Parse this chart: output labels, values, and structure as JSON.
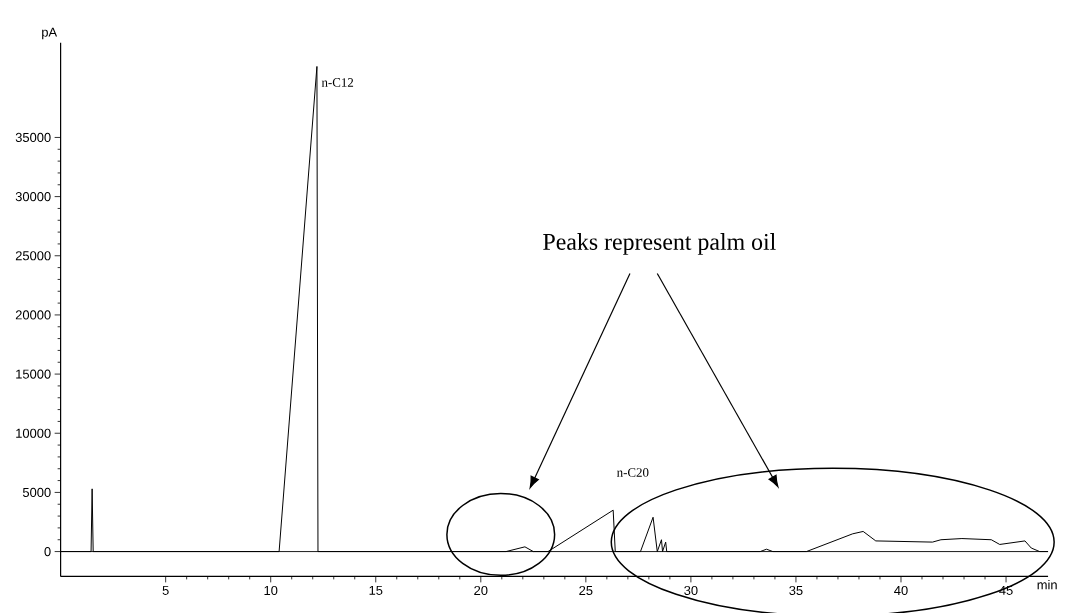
{
  "chart_data": {
    "type": "line",
    "xlabel": "min",
    "ylabel": "pA",
    "xlim": [
      0,
      47
    ],
    "ylim": [
      -2100,
      43000
    ],
    "xticks": [
      5,
      10,
      15,
      20,
      25,
      30,
      35,
      40,
      45
    ],
    "yticks": [
      0,
      5000,
      10000,
      15000,
      20000,
      25000,
      30000,
      35000
    ],
    "marker": "none",
    "line_style": "solid",
    "series": [
      {
        "color": "#000000",
        "x": [
          0,
          1.45,
          1.5,
          1.55,
          1.6,
          10.4,
          12.2,
          12.25,
          21.2,
          22.1,
          22.5,
          23.2,
          26.3,
          26.4,
          27.6,
          28.2,
          28.4,
          28.6,
          28.65,
          28.8,
          28.85,
          33.3,
          33.6,
          33.9,
          35.5,
          37.7,
          38.2,
          38.8,
          41.5,
          41.9,
          42.9,
          44.3,
          44.7,
          45.9,
          46.2,
          46.6,
          47
        ],
        "values": [
          0,
          0,
          5300,
          0,
          0,
          0,
          41000,
          0,
          0,
          400,
          0,
          0,
          3500,
          0,
          0,
          2900,
          0,
          1000,
          0,
          800,
          0,
          0,
          200,
          0,
          0,
          1500,
          1700,
          900,
          800,
          1000,
          1100,
          1000,
          600,
          900,
          300,
          0,
          0
        ]
      }
    ],
    "annotations": [
      {
        "text": "n-C12",
        "x": 12.25,
        "y": 41000
      },
      {
        "text": "n-C20",
        "x": 26.3,
        "y": 3500
      },
      "Peaks represent palm oil"
    ]
  }
}
